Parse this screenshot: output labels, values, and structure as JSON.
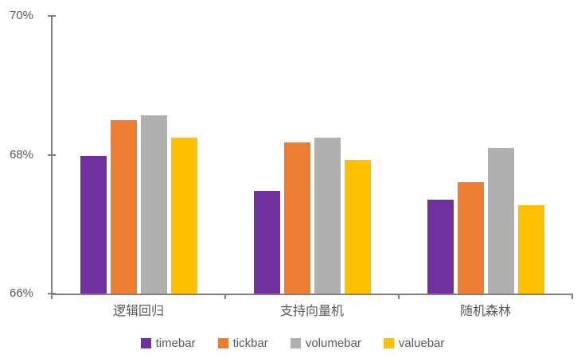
{
  "chart_data": {
    "type": "bar",
    "title": "",
    "xlabel": "",
    "ylabel": "",
    "categories": [
      "逻辑回归",
      "支持向量机",
      "随机森林"
    ],
    "series": [
      {
        "name": "timebar",
        "color": "#7030A0",
        "values": [
          67.98,
          67.48,
          67.35
        ]
      },
      {
        "name": "tickbar",
        "color": "#ED7D31",
        "values": [
          68.5,
          68.18,
          67.6
        ]
      },
      {
        "name": "volumebar",
        "color": "#B0B0B0",
        "values": [
          68.57,
          68.25,
          68.1
        ]
      },
      {
        "name": "valuebar",
        "color": "#FFC000",
        "values": [
          68.25,
          67.93,
          67.27
        ]
      }
    ],
    "ylim": [
      66,
      70
    ],
    "yticks": [
      {
        "value": 70,
        "label": "70%"
      },
      {
        "value": 68,
        "label": "68%"
      },
      {
        "value": 66,
        "label": "66%"
      }
    ],
    "grid": false,
    "legend_position": "bottom",
    "axis_color": "#808080",
    "text_color": "#595959"
  }
}
